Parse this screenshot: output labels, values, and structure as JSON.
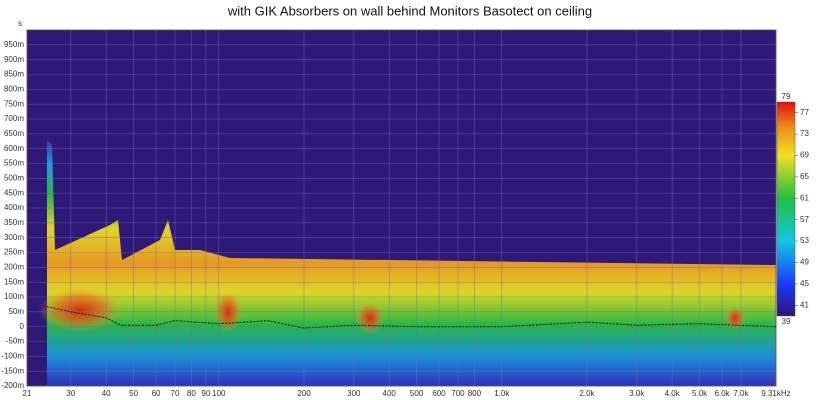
{
  "chart_data": {
    "type": "spectrogram",
    "title": "with GIK Absorbers on wall behind Monitors Basotect on ceiling",
    "y_unit": "s",
    "xscale": "log",
    "grid": true,
    "xlim": [
      21,
      9310
    ],
    "xticks": [
      21,
      30,
      40,
      50,
      60,
      70,
      80,
      90,
      100,
      200,
      300,
      400,
      500,
      600,
      700,
      800,
      {
        "value": 1000,
        "label": "1.0k"
      },
      {
        "value": 2000,
        "label": "2.0k"
      },
      {
        "value": 3000,
        "label": "3.0k"
      },
      {
        "value": 4000,
        "label": "4.0k"
      },
      {
        "value": 5000,
        "label": "5.0k"
      },
      {
        "value": 6000,
        "label": "6.0k"
      },
      {
        "value": 7000,
        "label": "7.0k"
      },
      {
        "value": 9310,
        "label": "9.31kHz"
      }
    ],
    "ylim": [
      -0.2,
      1.0
    ],
    "yticks": [
      {
        "value": -0.2,
        "label": "-200m"
      },
      {
        "value": -0.15,
        "label": "-150m"
      },
      {
        "value": -0.1,
        "label": "-100m"
      },
      {
        "value": -0.05,
        "label": "-50m"
      },
      0,
      {
        "value": 0.05,
        "label": "50m"
      },
      {
        "value": 0.1,
        "label": "100m"
      },
      {
        "value": 0.15,
        "label": "150m"
      },
      {
        "value": 0.2,
        "label": "200m"
      },
      {
        "value": 0.25,
        "label": "250m"
      },
      {
        "value": 0.3,
        "label": "300m"
      },
      {
        "value": 0.35,
        "label": "350m"
      },
      {
        "value": 0.4,
        "label": "400m"
      },
      {
        "value": 0.45,
        "label": "450m"
      },
      {
        "value": 0.5,
        "label": "500m"
      },
      {
        "value": 0.55,
        "label": "550m"
      },
      {
        "value": 0.6,
        "label": "600m"
      },
      {
        "value": 0.65,
        "label": "650m"
      },
      {
        "value": 0.7,
        "label": "700m"
      },
      {
        "value": 0.75,
        "label": "750m"
      },
      {
        "value": 0.8,
        "label": "800m"
      },
      {
        "value": 0.85,
        "label": "850m"
      },
      {
        "value": 0.9,
        "label": "900m"
      },
      {
        "value": 0.95,
        "label": "950m"
      }
    ],
    "line": {
      "color": "#111111",
      "dashed": true,
      "x": [
        24,
        30,
        40,
        45,
        60,
        70,
        100,
        150,
        200,
        300,
        500,
        1000,
        2000,
        3000,
        5000,
        9310
      ],
      "values": [
        0.07,
        0.05,
        0.03,
        0.005,
        0.005,
        0.02,
        0.01,
        0.02,
        -0.005,
        0.005,
        0.0,
        0.0,
        0.015,
        0.005,
        0.01,
        0.0
      ]
    },
    "colorbar": {
      "lim": [
        39,
        79
      ],
      "ticks": [
        41,
        45,
        49,
        53,
        57,
        61,
        65,
        69,
        73,
        77
      ]
    }
  }
}
